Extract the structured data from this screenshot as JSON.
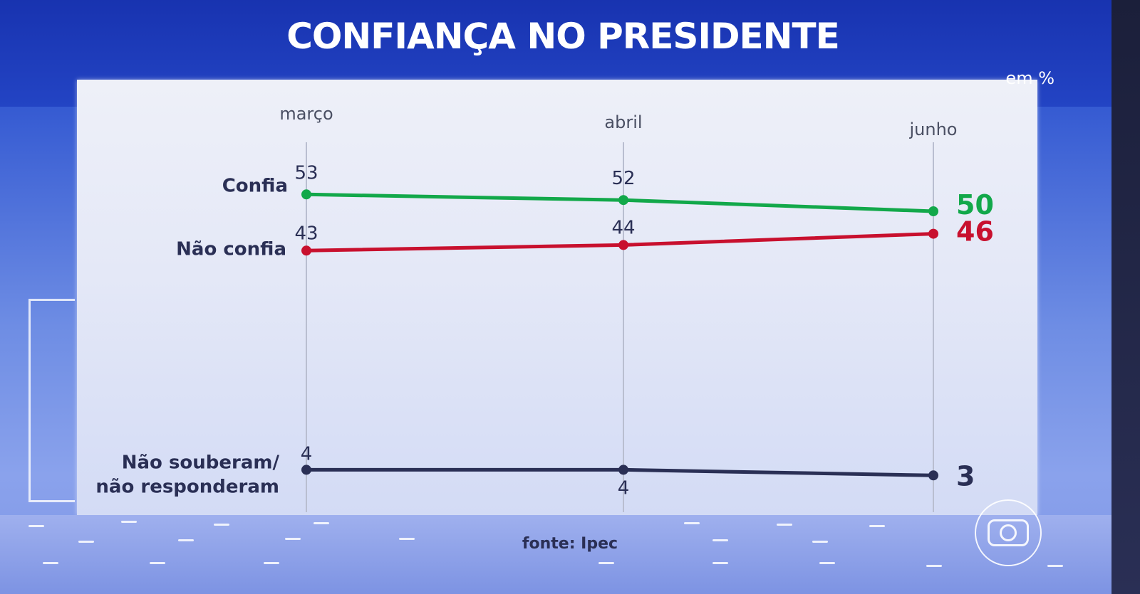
{
  "header": {
    "title": "CONFIANÇA NO PRESIDENTE",
    "unit": "em %"
  },
  "footer": {
    "source": "fonte: Ipec"
  },
  "chart_data": {
    "type": "line",
    "title": "CONFIANÇA NO PRESIDENTE",
    "ylabel": "em %",
    "categories": [
      "março",
      "abril",
      "junho"
    ],
    "series": [
      {
        "name": "Confia",
        "values": [
          53,
          52,
          50
        ],
        "color": "#12a84a"
      },
      {
        "name": "Não confia",
        "values": [
          43,
          44,
          46
        ],
        "color": "#c8102e"
      },
      {
        "name": "Não souberam/ não responderam",
        "values": [
          4,
          4,
          3
        ],
        "color": "#2a2f55"
      }
    ],
    "ylim": [
      0,
      60
    ],
    "grid": false,
    "legend": "left"
  }
}
